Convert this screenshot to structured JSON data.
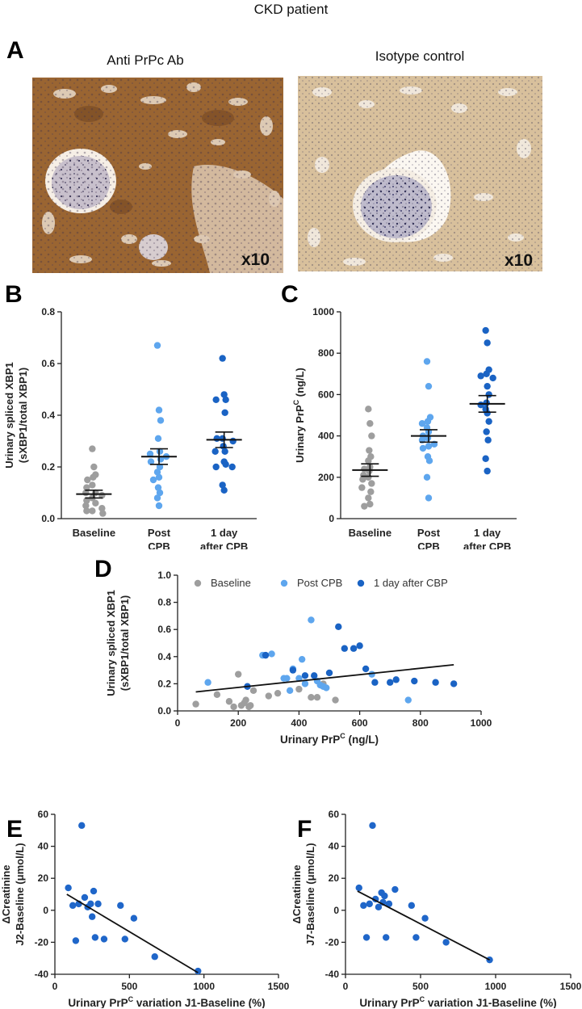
{
  "figure_title": "CKD patient",
  "panel_a": {
    "label": "A",
    "left_title": "Anti PrPc Ab",
    "right_title": "Isotype control",
    "left_magnification": "x10",
    "right_magnification": "x10"
  },
  "colors": {
    "baseline": "#9e9e9e",
    "post_cpb": "#5ea6ee",
    "day1": "#1a63c4",
    "corr": "#1f66c9",
    "line": "#111111"
  },
  "chart_data": [
    {
      "panel": "B",
      "type": "scatter",
      "subtype": "dot-plot with mean and SEM",
      "ylabel_line1": "Urinary spliced XBP1",
      "ylabel_line2": "(sXBP1/total XBP1)",
      "ylim": [
        0,
        0.8
      ],
      "yticks": [
        "0.0",
        "0.2",
        "0.4",
        "0.6",
        "0.8"
      ],
      "categories": [
        {
          "line1": "Baseline",
          "line2": ""
        },
        {
          "line1": "Post",
          "line2": "CPB"
        },
        {
          "line1": "1 day",
          "line2": "after CPB"
        }
      ],
      "series": [
        {
          "name": "Baseline",
          "color_key": "baseline",
          "mean": 0.095,
          "sem": 0.015,
          "values": [
            0.27,
            0.2,
            0.17,
            0.16,
            0.15,
            0.13,
            0.12,
            0.1,
            0.1,
            0.09,
            0.08,
            0.07,
            0.06,
            0.05,
            0.04,
            0.03,
            0.03,
            0.02
          ]
        },
        {
          "name": "Post CPB",
          "color_key": "post_cpb",
          "mean": 0.24,
          "sem": 0.03,
          "values": [
            0.67,
            0.42,
            0.38,
            0.31,
            0.26,
            0.25,
            0.24,
            0.23,
            0.22,
            0.2,
            0.18,
            0.16,
            0.15,
            0.12,
            0.1,
            0.08,
            0.05
          ]
        },
        {
          "name": "1 day after CPB",
          "color_key": "day1",
          "mean": 0.305,
          "sem": 0.03,
          "values": [
            0.62,
            0.48,
            0.46,
            0.46,
            0.41,
            0.31,
            0.31,
            0.3,
            0.28,
            0.26,
            0.26,
            0.22,
            0.21,
            0.2,
            0.2,
            0.13,
            0.11
          ]
        }
      ]
    },
    {
      "panel": "C",
      "type": "scatter",
      "subtype": "dot-plot with mean and SEM",
      "ylabel_main": "Urinary PrP",
      "ylabel_sup": "C",
      "ylabel_unit": " (ng/L)",
      "ylim": [
        0,
        1000
      ],
      "yticks": [
        "0",
        "200",
        "400",
        "600",
        "800",
        "1000"
      ],
      "categories": [
        {
          "line1": "Baseline",
          "line2": ""
        },
        {
          "line1": "Post",
          "line2": "CPB"
        },
        {
          "line1": "1 day",
          "line2": "after CPB"
        }
      ],
      "series": [
        {
          "name": "Baseline",
          "color_key": "baseline",
          "mean": 235,
          "sem": 30,
          "values": [
            530,
            460,
            400,
            330,
            300,
            280,
            250,
            240,
            230,
            210,
            200,
            190,
            170,
            150,
            130,
            100,
            70,
            60
          ]
        },
        {
          "name": "Post CPB",
          "color_key": "post_cpb",
          "mean": 400,
          "sem": 30,
          "values": [
            760,
            640,
            490,
            470,
            460,
            440,
            420,
            400,
            390,
            380,
            360,
            350,
            340,
            300,
            280,
            200,
            100
          ]
        },
        {
          "name": "1 day after CPB",
          "color_key": "day1",
          "mean": 555,
          "sem": 40,
          "values": [
            910,
            850,
            720,
            700,
            690,
            680,
            640,
            600,
            560,
            550,
            530,
            510,
            470,
            420,
            380,
            290,
            230
          ]
        }
      ]
    },
    {
      "panel": "D",
      "type": "scatter",
      "ylabel_line1": "Urinary spliced XBP1",
      "ylabel_line2": "(sXBP1/total XBP1)",
      "xlabel_main": "Urinary PrP",
      "xlabel_sup": "C",
      "xlabel_unit": " (ng/L)",
      "xlim": [
        0,
        1000
      ],
      "ylim": [
        0,
        1.0
      ],
      "xticks": [
        "0",
        "200",
        "400",
        "600",
        "800",
        "1000"
      ],
      "yticks": [
        "0.0",
        "0.2",
        "0.4",
        "0.6",
        "0.8",
        "1.0"
      ],
      "legend": [
        "Baseline",
        "Post CPB",
        "1 day after CBP"
      ],
      "regression": {
        "x1": 60,
        "y1": 0.14,
        "x2": 910,
        "y2": 0.34
      },
      "series": [
        {
          "name": "Baseline",
          "color_key": "baseline",
          "x": [
            60,
            130,
            170,
            185,
            200,
            210,
            220,
            225,
            235,
            240,
            250,
            300,
            330,
            400,
            440,
            460,
            480,
            520
          ],
          "y": [
            0.05,
            0.12,
            0.07,
            0.03,
            0.27,
            0.04,
            0.06,
            0.08,
            0.03,
            0.04,
            0.15,
            0.11,
            0.13,
            0.16,
            0.1,
            0.1,
            0.2,
            0.08
          ]
        },
        {
          "name": "Post CPB",
          "color_key": "post_cpb",
          "x": [
            100,
            280,
            310,
            350,
            360,
            370,
            380,
            400,
            410,
            420,
            440,
            460,
            470,
            480,
            490,
            640,
            760
          ],
          "y": [
            0.21,
            0.41,
            0.42,
            0.24,
            0.24,
            0.15,
            0.31,
            0.24,
            0.38,
            0.2,
            0.67,
            0.22,
            0.19,
            0.18,
            0.17,
            0.27,
            0.08
          ]
        },
        {
          "name": "1 day after CBP",
          "color_key": "day1",
          "x": [
            230,
            290,
            380,
            420,
            500,
            530,
            550,
            580,
            600,
            620,
            650,
            700,
            720,
            780,
            850,
            910,
            450
          ],
          "y": [
            0.18,
            0.41,
            0.3,
            0.26,
            0.28,
            0.62,
            0.46,
            0.46,
            0.48,
            0.31,
            0.21,
            0.21,
            0.23,
            0.22,
            0.21,
            0.2,
            0.26
          ]
        }
      ]
    },
    {
      "panel": "E",
      "type": "scatter",
      "ylabel_line1": "ΔCreatinine",
      "ylabel_line2_main": "J2-Baseline (",
      "ylabel_line2_mu": "μ",
      "ylabel_line2_rest": "mol/L)",
      "xlabel_main": "Urinary PrP",
      "xlabel_sup": "C",
      "xlabel_rest": " variation J1-Baseline (%)",
      "xlim": [
        0,
        1500
      ],
      "ylim": [
        -40,
        60
      ],
      "xticks": [
        "0",
        "500",
        "1000",
        "1500"
      ],
      "yticks": [
        "-40",
        "-20",
        "0",
        "20",
        "40",
        "60"
      ],
      "regression": {
        "x1": 80,
        "y1": 10,
        "x2": 960,
        "y2": -39
      },
      "series": [
        {
          "name": "Patients",
          "color_key": "corr",
          "x": [
            90,
            120,
            140,
            160,
            180,
            200,
            220,
            240,
            250,
            260,
            270,
            290,
            330,
            440,
            470,
            530,
            670,
            960
          ],
          "y": [
            14,
            3,
            -19,
            4,
            53,
            8,
            2,
            4,
            -4,
            12,
            -17,
            4,
            -18,
            3,
            -18,
            -5,
            -29,
            -38
          ]
        }
      ]
    },
    {
      "panel": "F",
      "type": "scatter",
      "ylabel_line1": "ΔCreatinine",
      "ylabel_line2_main": "J7-Baseline (",
      "ylabel_line2_mu": "μ",
      "ylabel_line2_rest": "mol/L)",
      "xlabel_main": "Urinary PrP",
      "xlabel_sup": "C",
      "xlabel_rest": " variation J1-Baseline (%)",
      "xlim": [
        0,
        1500
      ],
      "ylim": [
        -40,
        60
      ],
      "xticks": [
        "0",
        "500",
        "1000",
        "1500"
      ],
      "yticks": [
        "-40",
        "-20",
        "0",
        "20",
        "40",
        "60"
      ],
      "regression": {
        "x1": 80,
        "y1": 12,
        "x2": 960,
        "y2": -31
      },
      "series": [
        {
          "name": "Patients",
          "color_key": "corr",
          "x": [
            90,
            120,
            140,
            160,
            180,
            200,
            220,
            240,
            250,
            260,
            270,
            290,
            330,
            440,
            470,
            530,
            670,
            960
          ],
          "y": [
            14,
            3,
            -17,
            4,
            53,
            7,
            2,
            11,
            5,
            9,
            -17,
            4,
            13,
            3,
            -17,
            -5,
            -20,
            -31
          ]
        }
      ]
    }
  ]
}
